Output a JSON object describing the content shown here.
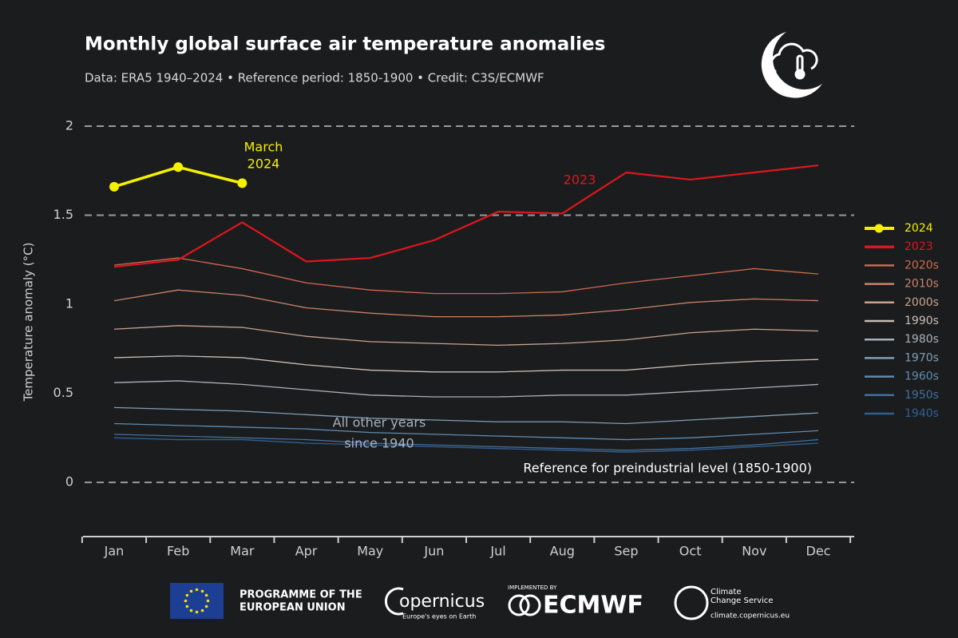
{
  "chart_data": {
    "type": "line",
    "title": "Monthly global surface air temperature anomalies",
    "subtitle": "Data: ERA5 1940–2024 • Reference period: 1850-1900 • Credit: C3S/ECMWF",
    "y_label": "Temperature anomaly (°C)",
    "categories": [
      "Jan",
      "Feb",
      "Mar",
      "Apr",
      "May",
      "Jun",
      "Jul",
      "Aug",
      "Sep",
      "Oct",
      "Nov",
      "Dec"
    ],
    "ylim": [
      -0.3,
      2.0
    ],
    "yticks": [
      0.0,
      0.5,
      1.0,
      1.5,
      2.0
    ],
    "dashed_lines": [
      0.0,
      1.5,
      2.0
    ],
    "legend": "right",
    "annotations": [
      "March",
      "2024",
      "All other years",
      "since 1940",
      "Reference for preindustrial level (1850-1900)"
    ],
    "series": [
      {
        "name": "2024",
        "color": "#f5f000",
        "values": [
          1.66,
          1.77,
          1.68,
          null,
          null,
          null,
          null,
          null,
          null,
          null,
          null,
          null
        ]
      },
      {
        "name": "2023",
        "color": "#e0161c",
        "values": [
          1.21,
          1.25,
          1.46,
          1.24,
          1.26,
          1.36,
          1.52,
          1.51,
          1.74,
          1.7,
          1.74,
          1.78
        ]
      },
      {
        "name": "2020s",
        "color": "#cc6a4f",
        "values": [
          1.22,
          1.26,
          1.2,
          1.12,
          1.08,
          1.06,
          1.06,
          1.07,
          1.12,
          1.16,
          1.2,
          1.17
        ]
      },
      {
        "name": "2010s",
        "color": "#c9836a",
        "values": [
          1.02,
          1.08,
          1.05,
          0.98,
          0.95,
          0.93,
          0.93,
          0.94,
          0.97,
          1.01,
          1.03,
          1.02
        ]
      },
      {
        "name": "2000s",
        "color": "#c8a48e",
        "values": [
          0.86,
          0.88,
          0.87,
          0.82,
          0.79,
          0.78,
          0.77,
          0.78,
          0.8,
          0.84,
          0.86,
          0.85
        ]
      },
      {
        "name": "1990s",
        "color": "#c9bdb5",
        "values": [
          0.7,
          0.71,
          0.7,
          0.66,
          0.63,
          0.62,
          0.62,
          0.63,
          0.63,
          0.66,
          0.68,
          0.69
        ]
      },
      {
        "name": "1980s",
        "color": "#a9b1b9",
        "values": [
          0.56,
          0.57,
          0.55,
          0.52,
          0.49,
          0.48,
          0.48,
          0.49,
          0.49,
          0.51,
          0.53,
          0.55
        ]
      },
      {
        "name": "1970s",
        "color": "#809eb6",
        "values": [
          0.42,
          0.41,
          0.4,
          0.38,
          0.36,
          0.35,
          0.34,
          0.34,
          0.33,
          0.35,
          0.37,
          0.39
        ]
      },
      {
        "name": "1960s",
        "color": "#5e8bb1",
        "values": [
          0.33,
          0.32,
          0.31,
          0.3,
          0.28,
          0.27,
          0.26,
          0.25,
          0.24,
          0.25,
          0.27,
          0.29
        ]
      },
      {
        "name": "1950s",
        "color": "#40709d",
        "values": [
          0.27,
          0.26,
          0.25,
          0.24,
          0.22,
          0.21,
          0.2,
          0.19,
          0.18,
          0.19,
          0.21,
          0.24
        ]
      },
      {
        "name": "1940s",
        "color": "#306091",
        "values": [
          0.25,
          0.24,
          0.24,
          0.22,
          0.21,
          0.2,
          0.19,
          0.18,
          0.17,
          0.18,
          0.2,
          0.22
        ]
      }
    ]
  },
  "footer": {
    "eu": [
      "PROGRAMME OF THE",
      "EUROPEAN UNION"
    ],
    "copernicus": "opernicus",
    "copernicus_tagline": "Europe's eyes on Earth",
    "implemented_by": "IMPLEMENTED BY",
    "ecmwf": "ECMWF",
    "c3s": [
      "Climate",
      "Change Service"
    ],
    "c3s_url": "climate.copernicus.eu"
  }
}
